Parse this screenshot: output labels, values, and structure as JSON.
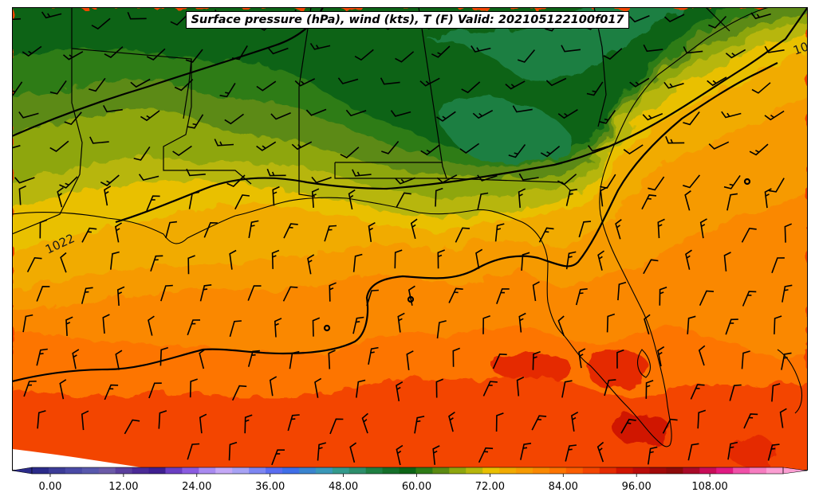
{
  "title": "Surface pressure (hPa), wind (kts), T (F) Valid: 202105122100f017",
  "colorbar": {
    "tick_labels": [
      "0.00",
      "12.00",
      "24.00",
      "36.00",
      "48.00",
      "60.00",
      "72.00",
      "84.00",
      "96.00",
      "108.00"
    ],
    "colors": [
      "#2b2b8a",
      "#3c3c98",
      "#4a4aa6",
      "#5858ad",
      "#6b5aa8",
      "#5a3f9d",
      "#4b2a96",
      "#3f1f90",
      "#6a3fc2",
      "#8a5be0",
      "#a98af0",
      "#c4a8f6",
      "#a7a2f4",
      "#7d86f2",
      "#5a6df0",
      "#3f6ee8",
      "#3a84cf",
      "#3a98b8",
      "#349a8c",
      "#2d8e6b",
      "#1f7f42",
      "#156f2a",
      "#0d6416",
      "#2e7b16",
      "#5c8a12",
      "#8ea60e",
      "#b7b60b",
      "#e9c000",
      "#f1ab00",
      "#f69a00",
      "#fa8800",
      "#fd7400",
      "#fb5d00",
      "#f34500",
      "#e52b00",
      "#d01400",
      "#b90b09",
      "#a10909",
      "#8d0a0a",
      "#a80a28",
      "#c80c58",
      "#e01a82",
      "#f050a8",
      "#f67cc0",
      "#fb9ed2"
    ],
    "vmin": -3,
    "vmax": 120
  },
  "contour_labels": [
    "1022",
    "10"
  ],
  "map": {
    "region": "US Gulf Coast / Southeast",
    "fields": [
      "surface pressure isobars",
      "wind barbs",
      "2m temperature (F)"
    ]
  }
}
